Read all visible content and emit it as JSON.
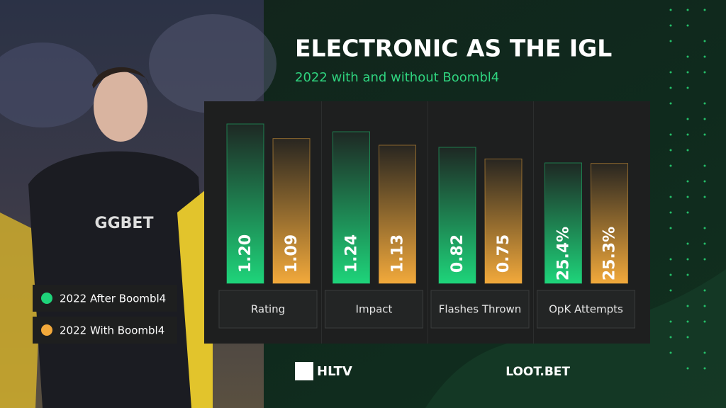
{
  "chart_data": {
    "type": "bar",
    "title": "ELECTRONIC AS THE IGL",
    "subtitle": "2022 with and without Boombl4",
    "categories": [
      "Rating",
      "Impact",
      "Flashes Thrown",
      "OpK Attempts"
    ],
    "series": [
      {
        "name": "2022 After Boombl4",
        "color": "#1ed47a",
        "values": [
          1.2,
          1.24,
          0.82,
          25.4
        ],
        "value_labels": [
          "1.20",
          "1.24",
          "0.82",
          "25.4%"
        ]
      },
      {
        "name": "2022 With Boombl4",
        "color": "#f2a93b",
        "values": [
          1.09,
          1.13,
          0.75,
          25.3
        ],
        "value_labels": [
          "1.09",
          "1.13",
          "0.75",
          "25.3%"
        ]
      }
    ]
  },
  "footer": {
    "left_logo": "HLTV",
    "right_logo": "LOOT.BET"
  }
}
